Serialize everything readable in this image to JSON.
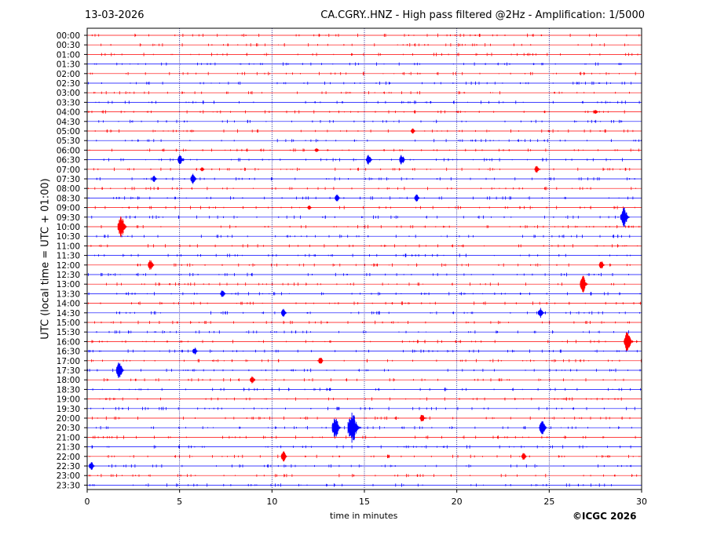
{
  "header": {
    "date": "13-03-2026",
    "title": "CA.CGRY..HNZ - High pass filtered @2Hz - Amplification: 1/5000"
  },
  "footer": {
    "copyright": "©ICGC 2026"
  },
  "colors": {
    "red": "#ff0000",
    "blue": "#0000ff",
    "grid": "#000080"
  },
  "chart_data": {
    "type": "line",
    "xlabel": "time in minutes",
    "ylabel": "UTC (local time = UTC + 01:00)",
    "xlim": [
      0,
      30
    ],
    "x_ticks": [
      "0",
      "5",
      "10",
      "15",
      "20",
      "25",
      "30"
    ],
    "grid": "vertical dotted at 5,10,15,20,25",
    "rows": [
      "00:00",
      "00:30",
      "01:00",
      "01:30",
      "02:00",
      "02:30",
      "03:00",
      "03:30",
      "04:00",
      "04:30",
      "05:00",
      "05:30",
      "06:00",
      "06:30",
      "07:00",
      "07:30",
      "08:00",
      "08:30",
      "09:00",
      "09:30",
      "10:00",
      "10:30",
      "11:00",
      "11:30",
      "12:00",
      "12:30",
      "13:00",
      "13:30",
      "14:00",
      "14:30",
      "15:00",
      "15:30",
      "16:00",
      "16:30",
      "17:00",
      "17:30",
      "18:00",
      "18:30",
      "19:00",
      "19:30",
      "20:00",
      "20:30",
      "21:00",
      "21:30",
      "22:00",
      "22:30",
      "23:00",
      "23:30"
    ],
    "row_colors": [
      "red",
      "red",
      "red",
      "blue",
      "red",
      "blue",
      "red",
      "blue",
      "red",
      "blue",
      "red",
      "blue",
      "red",
      "blue",
      "red",
      "blue",
      "red",
      "blue",
      "red",
      "blue",
      "red",
      "blue",
      "red",
      "blue",
      "red",
      "blue",
      "red",
      "blue",
      "red",
      "blue",
      "red",
      "blue",
      "red",
      "blue",
      "red",
      "blue",
      "red",
      "blue",
      "red",
      "blue",
      "red",
      "blue",
      "red",
      "blue",
      "red",
      "blue",
      "red",
      "blue"
    ],
    "events": [
      {
        "row": "04:00",
        "x": 27.5,
        "amp": 0.2
      },
      {
        "row": "05:00",
        "x": 17.6,
        "amp": 0.25
      },
      {
        "row": "06:00",
        "x": 12.4,
        "amp": 0.2
      },
      {
        "row": "06:30",
        "x": 5.0,
        "amp": 0.45
      },
      {
        "row": "06:30",
        "x": 15.2,
        "amp": 0.5
      },
      {
        "row": "06:30",
        "x": 17.0,
        "amp": 0.5
      },
      {
        "row": "07:00",
        "x": 6.2,
        "amp": 0.2
      },
      {
        "row": "07:00",
        "x": 24.3,
        "amp": 0.35
      },
      {
        "row": "07:30",
        "x": 5.7,
        "amp": 0.5
      },
      {
        "row": "07:30",
        "x": 3.6,
        "amp": 0.3
      },
      {
        "row": "08:30",
        "x": 13.5,
        "amp": 0.35
      },
      {
        "row": "08:30",
        "x": 17.8,
        "amp": 0.35
      },
      {
        "row": "09:00",
        "x": 12.0,
        "amp": 0.2
      },
      {
        "row": "09:30",
        "x": 29.0,
        "amp": 1.0
      },
      {
        "row": "10:00",
        "x": 1.8,
        "amp": 1.0
      },
      {
        "row": "12:00",
        "x": 3.4,
        "amp": 0.5
      },
      {
        "row": "12:00",
        "x": 27.8,
        "amp": 0.4
      },
      {
        "row": "13:00",
        "x": 26.8,
        "amp": 0.8
      },
      {
        "row": "13:30",
        "x": 7.3,
        "amp": 0.35
      },
      {
        "row": "14:30",
        "x": 10.6,
        "amp": 0.4
      },
      {
        "row": "14:30",
        "x": 24.5,
        "amp": 0.5
      },
      {
        "row": "16:00",
        "x": 29.2,
        "amp": 1.0
      },
      {
        "row": "16:30",
        "x": 5.8,
        "amp": 0.35
      },
      {
        "row": "17:00",
        "x": 12.6,
        "amp": 0.35
      },
      {
        "row": "17:30",
        "x": 1.7,
        "amp": 0.8
      },
      {
        "row": "18:00",
        "x": 8.9,
        "amp": 0.35
      },
      {
        "row": "20:00",
        "x": 18.1,
        "amp": 0.4
      },
      {
        "row": "20:30",
        "x": 13.4,
        "amp": 1.0
      },
      {
        "row": "20:30",
        "x": 14.3,
        "amp": 1.6
      },
      {
        "row": "20:30",
        "x": 24.6,
        "amp": 0.7
      },
      {
        "row": "22:00",
        "x": 10.6,
        "amp": 0.5
      },
      {
        "row": "22:00",
        "x": 23.6,
        "amp": 0.35
      },
      {
        "row": "22:30",
        "x": 0.2,
        "amp": 0.4
      }
    ]
  }
}
